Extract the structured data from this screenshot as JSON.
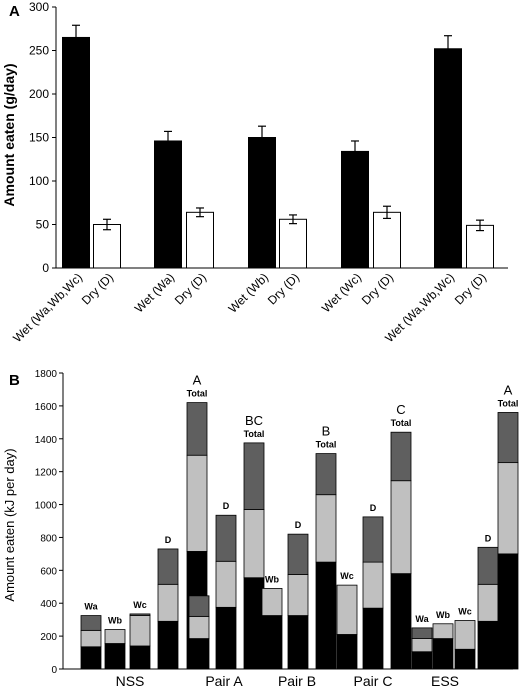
{
  "chart_data": [
    {
      "panel": "A",
      "type": "bar",
      "ylabel": "Amount eaten (g/day)",
      "ylim": [
        0,
        300
      ],
      "yticks": [
        0,
        50,
        100,
        150,
        200,
        250,
        300
      ],
      "categories": [
        "Wet (Wa,Wb,Wc)",
        "Dry (D)",
        "Wet (Wa)",
        "Dry (D)",
        "Wet (Wb)",
        "Dry (D)",
        "Wet (Wc)",
        "Dry (D)",
        "Wet (Wa,Wb,Wc)",
        "Dry (D)"
      ],
      "values": [
        265,
        50,
        146,
        64,
        150,
        56,
        134,
        64,
        252,
        49
      ],
      "errors": [
        14,
        6,
        11,
        5,
        13,
        5,
        12,
        7,
        15,
        6
      ],
      "colors": [
        "#000000",
        "#ffffff",
        "#000000",
        "#ffffff",
        "#000000",
        "#ffffff",
        "#000000",
        "#ffffff",
        "#000000",
        "#ffffff"
      ]
    },
    {
      "panel": "B",
      "type": "bar",
      "stacked": true,
      "ylabel": "Amount eaten (kJ per day)",
      "ylim": [
        0,
        1800
      ],
      "yticks": [
        0,
        200,
        400,
        600,
        800,
        1000,
        1200,
        1400,
        1600,
        1800
      ],
      "groups": [
        "NSS",
        "Pair A",
        "Pair B",
        "Pair C",
        "ESS"
      ],
      "segment_colors": [
        "#000000",
        "#c0c0c0",
        "#5f5f5f"
      ],
      "bars": [
        {
          "group": 0,
          "label": "Wa",
          "segments": [
            135,
            100,
            90
          ]
        },
        {
          "group": 0,
          "label": "Wb",
          "segments": [
            155,
            85,
            0
          ]
        },
        {
          "group": 0,
          "label": "Wc",
          "segments": [
            140,
            185,
            10
          ]
        },
        {
          "group": 0,
          "label": "D",
          "segments": [
            290,
            225,
            215
          ]
        },
        {
          "group": 0,
          "label": "Total",
          "sig": "A",
          "segments": [
            715,
            585,
            320
          ]
        },
        {
          "group": 1,
          "label": "Wa",
          "segments": [
            185,
            135,
            125
          ]
        },
        {
          "group": 1,
          "label": "D",
          "segments": [
            375,
            280,
            280
          ]
        },
        {
          "group": 1,
          "label": "Total",
          "sig": "BC",
          "segments": [
            555,
            415,
            405
          ]
        },
        {
          "group": 2,
          "label": "Wb",
          "segments": [
            325,
            165,
            0
          ]
        },
        {
          "group": 2,
          "label": "D",
          "segments": [
            325,
            250,
            245
          ]
        },
        {
          "group": 2,
          "label": "Total",
          "sig": "B",
          "segments": [
            650,
            410,
            250
          ]
        },
        {
          "group": 3,
          "label": "Wc",
          "segments": [
            210,
            300,
            0
          ]
        },
        {
          "group": 3,
          "label": "D",
          "segments": [
            370,
            280,
            275
          ]
        },
        {
          "group": 3,
          "label": "Total",
          "sig": "C",
          "segments": [
            580,
            565,
            295
          ]
        },
        {
          "group": 4,
          "label": "Wa",
          "segments": [
            105,
            80,
            65
          ]
        },
        {
          "group": 4,
          "label": "Wb",
          "segments": [
            185,
            90,
            0
          ]
        },
        {
          "group": 4,
          "label": "Wc",
          "segments": [
            120,
            175,
            0
          ]
        },
        {
          "group": 4,
          "label": "D",
          "segments": [
            290,
            225,
            225
          ]
        },
        {
          "group": 4,
          "label": "Total",
          "sig": "A",
          "segments": [
            700,
            555,
            305
          ]
        }
      ]
    }
  ]
}
